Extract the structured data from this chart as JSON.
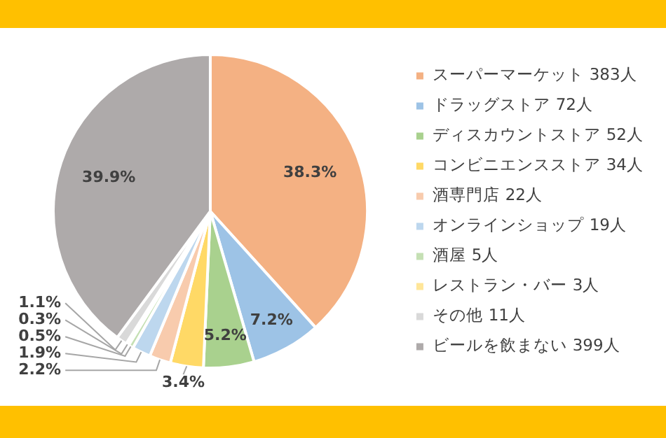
{
  "chart_data": {
    "type": "pie",
    "categories": [
      "スーパーマーケット 383人",
      "ドラッグストア 72人",
      "ディスカウントストア 52人",
      "コンビニエンスストア 34人",
      "酒専門店 22人",
      "オンラインショップ 19人",
      "酒屋 5人",
      "レストラン・バー 3人",
      "その他 11人",
      "ビールを飲まない 399人"
    ],
    "values": [
      38.3,
      7.2,
      5.2,
      3.4,
      2.2,
      1.9,
      0.5,
      0.3,
      1.1,
      39.9
    ],
    "colors": [
      "#f4b183",
      "#9dc3e6",
      "#a9d18e",
      "#ffd966",
      "#f8cbad",
      "#bdd7ee",
      "#c5e0b4",
      "#ffe699",
      "#d9d9d9",
      "#aeaaaa"
    ],
    "value_labels": [
      "38.3%",
      "7.2%",
      "5.2%",
      "3.4%",
      "2.2%",
      "1.9%",
      "0.5%",
      "0.3%",
      "1.1%",
      "39.9%"
    ],
    "legend": "right"
  }
}
